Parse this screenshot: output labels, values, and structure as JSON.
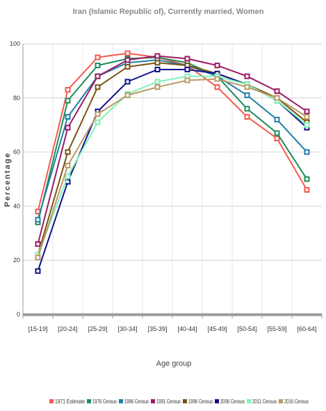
{
  "chart_data": {
    "type": "line",
    "title": "Iran (Islamic Republic of), Currently married, Women",
    "xlabel": "Age group",
    "ylabel": "Percentage",
    "ylim": [
      0,
      100
    ],
    "yticks": [
      0,
      20,
      40,
      60,
      80,
      100
    ],
    "grid": true,
    "legend_position": "bottom",
    "categories": [
      "[15-19]",
      "[20-24]",
      "[25-29]",
      "[30-34]",
      "[35-39]",
      "[40-44]",
      "[45-49]",
      "[50-54]",
      "[55-59]",
      "[60-64]"
    ],
    "series": [
      {
        "name": "1971 Estimate",
        "color": "#f4594f",
        "values": [
          38,
          83,
          95,
          96.5,
          95,
          92,
          84,
          73,
          65,
          46
        ]
      },
      {
        "name": "1976 Census",
        "color": "#1e8c5a",
        "values": [
          34,
          79,
          92,
          94.5,
          95,
          93,
          88,
          76,
          67,
          50
        ]
      },
      {
        "name": "1986 Census",
        "color": "#1f7ea8",
        "values": [
          35,
          73,
          88,
          93,
          94,
          92,
          88,
          81,
          72,
          60
        ]
      },
      {
        "name": "1991 Census",
        "color": "#9b1b63",
        "values": [
          26,
          69,
          88,
          94,
          95.5,
          94.5,
          92,
          88,
          82.5,
          75
        ]
      },
      {
        "name": "1996 Census",
        "color": "#7a5412",
        "values": [
          22,
          60,
          84,
          91.5,
          93,
          92,
          89,
          85,
          80,
          71
        ]
      },
      {
        "name": "2006 Census",
        "color": "#10108a",
        "values": [
          16,
          49,
          75,
          86,
          90.5,
          90.5,
          89,
          85,
          79,
          69
        ]
      },
      {
        "name": "2011 Census",
        "color": "#7ef2b6",
        "values": [
          22,
          51,
          71,
          81.5,
          86,
          88,
          88,
          85,
          79,
          70
        ]
      },
      {
        "name": "2016 Census",
        "color": "#b89a66",
        "values": [
          21,
          55,
          74,
          81,
          84,
          86.5,
          87,
          84,
          80,
          73
        ]
      }
    ]
  }
}
